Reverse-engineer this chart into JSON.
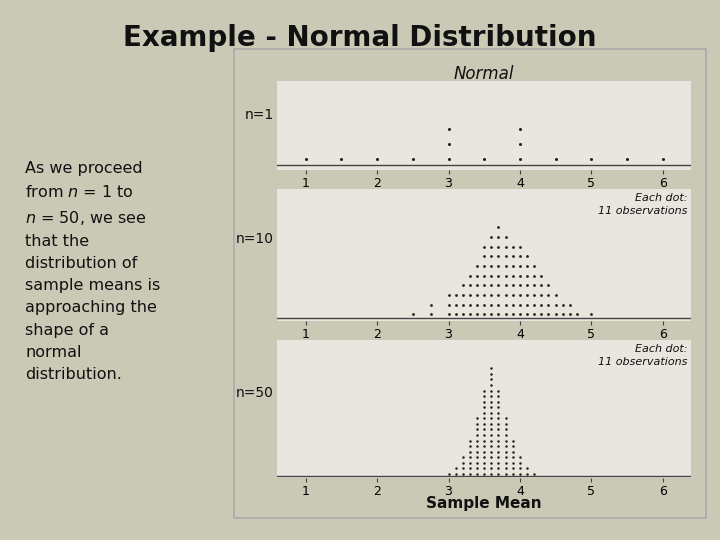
{
  "title": "Example - Normal Distribution",
  "background_color": "#c9c9b5",
  "panel_bg": "#e8e6df",
  "white_bg": "#f5f4f0",
  "dot_color": "#2a2010",
  "axis_color": "#555555",
  "title_fontsize": 20,
  "top_label": "Normal",
  "xlabel": "Sample Mean",
  "note_text": "Each dot:\n11 observations",
  "panel_labels": [
    "n=1",
    "n=10",
    "n=50"
  ],
  "xvals": [
    1.0,
    1.5,
    2.0,
    2.5,
    3.0,
    3.25,
    3.5,
    3.75,
    4.0,
    4.25,
    4.5,
    5.0,
    5.5,
    6.0
  ],
  "n1_xvals": [
    1.0,
    1.5,
    2.0,
    2.5,
    3.0,
    3.5,
    4.0,
    4.5,
    5.0,
    5.5,
    6.0
  ],
  "n1_counts": [
    1,
    1,
    1,
    1,
    3,
    1,
    3,
    1,
    1,
    1,
    1
  ],
  "n10_xvals": [
    2.5,
    2.75,
    3.0,
    3.1,
    3.2,
    3.3,
    3.4,
    3.5,
    3.6,
    3.7,
    3.8,
    3.9,
    4.0,
    4.1,
    4.2,
    4.3,
    4.4,
    4.5,
    4.6,
    4.7,
    4.8,
    5.0
  ],
  "n10_counts": [
    1,
    2,
    3,
    3,
    4,
    5,
    6,
    8,
    9,
    10,
    9,
    8,
    8,
    7,
    6,
    5,
    4,
    3,
    2,
    2,
    1,
    1
  ],
  "n50_xvals": [
    3.0,
    3.1,
    3.2,
    3.3,
    3.4,
    3.5,
    3.6,
    3.7,
    3.8,
    3.9,
    4.0,
    4.1,
    4.2
  ],
  "n50_counts": [
    1,
    2,
    4,
    7,
    11,
    16,
    20,
    16,
    11,
    7,
    4,
    2,
    1
  ],
  "xtick_labels": [
    "1",
    "2",
    "3",
    "4",
    "5",
    "6"
  ],
  "xtick_positions": [
    1.0,
    2.0,
    3.0,
    4.0,
    5.0,
    6.0
  ]
}
